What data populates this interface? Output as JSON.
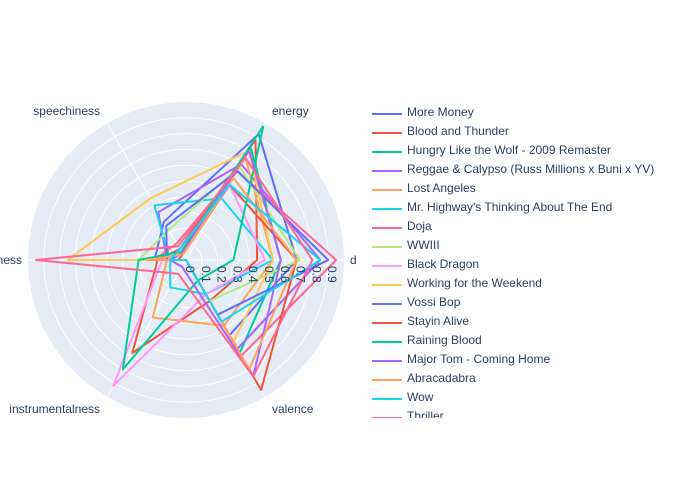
{
  "chart_data": {
    "type": "radar",
    "axes": [
      "energy",
      "danceability",
      "valence",
      "instrumentalness",
      "liveness",
      "speechiness"
    ],
    "axis_labels": [
      "energy",
      "d",
      "valence",
      "instrumentalness",
      "liveness",
      "speechiness"
    ],
    "radial_ticks": [
      "0",
      "0.1",
      "0.2",
      "0.3",
      "0.4",
      "0.5",
      "0.6",
      "0.7",
      "0.8",
      "0.9"
    ],
    "radial_range": [
      0,
      1
    ],
    "grid": true,
    "legend_position": "right",
    "series": [
      {
        "name": "More Money",
        "color": "#636efa",
        "values": [
          0.92,
          0.7,
          0.55,
          0.0,
          0.2,
          0.28
        ]
      },
      {
        "name": "Blood and Thunder",
        "color": "#EF553B",
        "values": [
          0.88,
          0.45,
          0.3,
          0.68,
          0.18,
          0.08
        ]
      },
      {
        "name": "Hungry Like the Wolf - 2009 Remaster",
        "color": "#00cc96",
        "values": [
          0.82,
          0.6,
          0.68,
          0.0,
          0.1,
          0.05
        ]
      },
      {
        "name": "Reggae & Calypso (Russ Millions x Buni x YV)",
        "color": "#ab63fa",
        "values": [
          0.7,
          0.85,
          0.65,
          0.0,
          0.12,
          0.35
        ]
      },
      {
        "name": "Lost Angeles",
        "color": "#FFA15A",
        "values": [
          0.75,
          0.55,
          0.48,
          0.42,
          0.12,
          0.05
        ]
      },
      {
        "name": "Mr. Highway's Thinking About The End",
        "color": "#19d3f3",
        "values": [
          0.45,
          0.55,
          0.25,
          0.2,
          0.1,
          0.4
        ]
      },
      {
        "name": "Doja",
        "color": "#FF6692",
        "values": [
          0.65,
          0.95,
          0.7,
          0.0,
          0.2,
          0.12
        ]
      },
      {
        "name": "WWIII",
        "color": "#B6E880",
        "values": [
          0.68,
          0.72,
          0.3,
          0.0,
          0.3,
          0.22
        ]
      },
      {
        "name": "Black Dragon",
        "color": "#FF97FF",
        "values": [
          0.55,
          0.5,
          0.25,
          0.92,
          0.15,
          0.04
        ]
      },
      {
        "name": "Working for the Weekend",
        "color": "#FECB52",
        "values": [
          0.8,
          0.55,
          0.6,
          0.0,
          0.75,
          0.45
        ]
      },
      {
        "name": "Vossi Bop",
        "color": "#636efa",
        "values": [
          0.65,
          0.9,
          0.4,
          0.0,
          0.12,
          0.25
        ]
      },
      {
        "name": "Stayin Alive",
        "color": "#EF553B",
        "values": [
          0.55,
          0.7,
          0.95,
          0.0,
          0.05,
          0.04
        ]
      },
      {
        "name": "Raining Blood",
        "color": "#00cc96",
        "values": [
          0.98,
          0.3,
          0.15,
          0.8,
          0.3,
          0.06
        ]
      },
      {
        "name": "Major Tom - Coming Home",
        "color": "#ab63fa",
        "values": [
          0.8,
          0.6,
          0.85,
          0.05,
          0.1,
          0.05
        ]
      },
      {
        "name": "Abracadabra",
        "color": "#FFA15A",
        "values": [
          0.6,
          0.7,
          0.8,
          0.0,
          0.25,
          0.04
        ]
      },
      {
        "name": "Wow",
        "color": "#19d3f3",
        "values": [
          0.55,
          0.85,
          0.45,
          0.0,
          0.1,
          0.08
        ]
      },
      {
        "name": "Thriller",
        "color": "#FF6692",
        "values": [
          0.75,
          0.8,
          0.85,
          0.1,
          0.95,
          0.1
        ]
      }
    ]
  }
}
